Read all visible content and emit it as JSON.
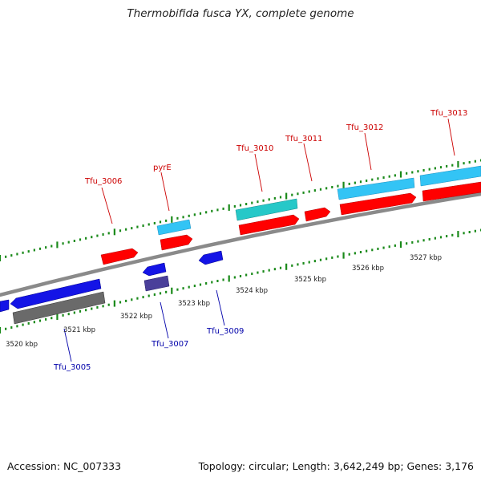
{
  "title": "Thermobifida fusca YX, complete genome",
  "footer": {
    "accession": "Accession: NC_007333",
    "topology": "Topology: circular; Length: 3,642,249 bp; Genes: 3,176"
  },
  "colors": {
    "forward_cds": "#ff0000",
    "forward_gene": "#33c4f5",
    "forward_rna": "#26c8c8",
    "reverse_cds": "#1414e6",
    "reverse_gene": "#6a6a6a",
    "reverse_pseudo": "#4a3f9a",
    "backbone": "#8a8a8a",
    "ticks": "#1a8a1a",
    "label_forward": "#cc0000",
    "label_reverse": "#0000aa"
  },
  "kbp_labels": [
    "3520 kbp",
    "3521 kbp",
    "3522 kbp",
    "3523 kbp",
    "3524 kbp",
    "3525 kbp",
    "3526 kbp",
    "3527 kbp"
  ],
  "gene_labels_forward": [
    "Tfu_3006",
    "pyrE",
    "Tfu_3010",
    "Tfu_3011",
    "Tfu_3012",
    "Tfu_3013"
  ],
  "gene_labels_reverse": [
    "Tfu_3005",
    "Tfu_3007",
    "Tfu_3009"
  ]
}
